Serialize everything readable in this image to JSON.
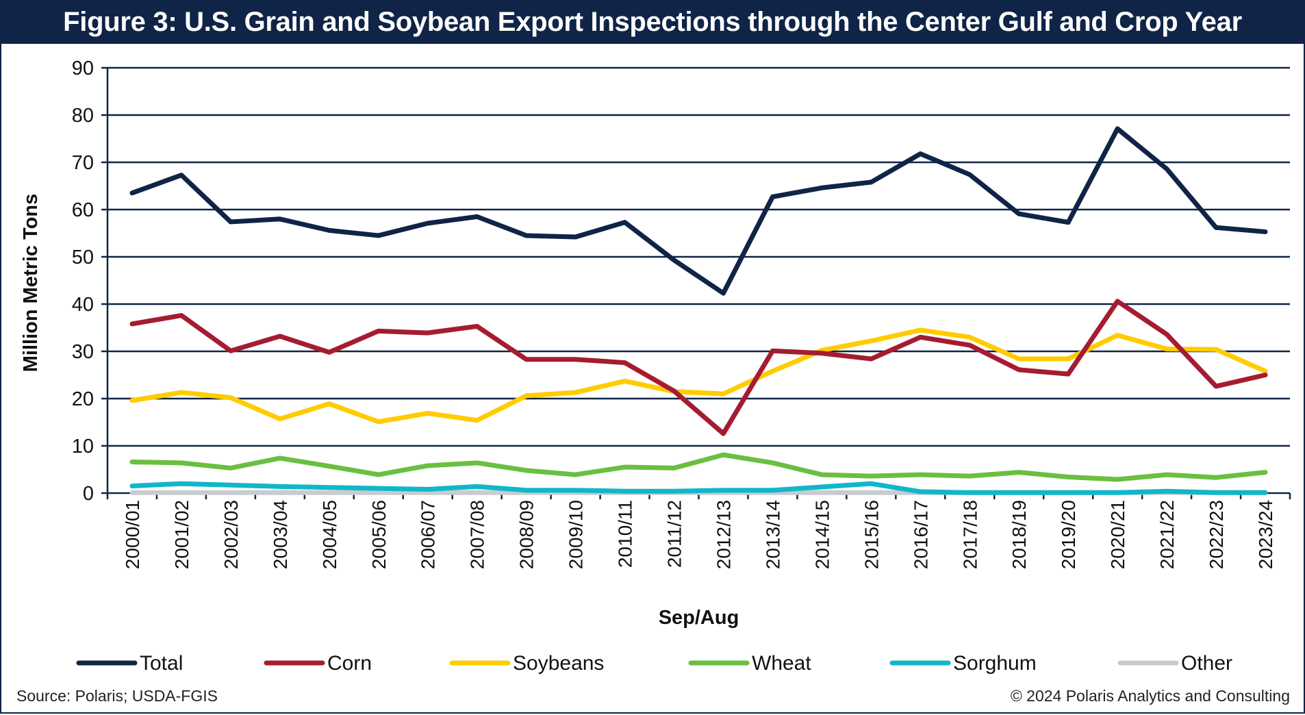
{
  "title": "Figure 3: U.S. Grain and Soybean Export Inspections through the Center Gulf and Crop Year",
  "source": "Source:  Polaris; USDA-FGIS",
  "copyright": "© 2024 Polaris Analytics and Consulting",
  "chart_data": {
    "type": "line",
    "title": "Figure 3: U.S. Grain and Soybean Export Inspections through the Center Gulf and Crop Year",
    "xlabel": "Sep/Aug",
    "ylabel": "Million  Metric  Tons",
    "ylim": [
      0,
      90
    ],
    "yticks": [
      0,
      10,
      20,
      30,
      40,
      50,
      60,
      70,
      80,
      90
    ],
    "grid": true,
    "legend_position": "bottom",
    "categories": [
      "2000/01",
      "2001/02",
      "2002/03",
      "2003/04",
      "2004/05",
      "2005/06",
      "2006/07",
      "2007/08",
      "2008/09",
      "2009/10",
      "2010/11",
      "2011/12",
      "2012/13",
      "2013/14",
      "2014/15",
      "2015/16",
      "2016/17",
      "2017/18",
      "2018/19",
      "2019/20",
      "2020/21",
      "2021/22",
      "2022/23",
      "2023/24"
    ],
    "series": [
      {
        "name": "Total",
        "color": "#0f2447",
        "values": [
          63.5,
          67.3,
          57.4,
          58.0,
          55.6,
          54.5,
          57.1,
          58.5,
          54.5,
          54.2,
          57.3,
          49.3,
          42.3,
          62.7,
          64.6,
          65.8,
          71.8,
          67.4,
          59.1,
          57.3,
          77.1,
          68.6,
          56.2,
          55.3
        ]
      },
      {
        "name": "Corn",
        "color": "#a51c30",
        "values": [
          35.8,
          37.6,
          30.1,
          33.2,
          29.8,
          34.3,
          33.9,
          35.3,
          28.3,
          28.3,
          27.6,
          21.6,
          12.6,
          30.1,
          29.6,
          28.4,
          33.0,
          31.3,
          26.1,
          25.2,
          40.6,
          33.6,
          22.6,
          25.0
        ]
      },
      {
        "name": "Soybeans",
        "color": "#ffcc00",
        "values": [
          19.6,
          21.3,
          20.2,
          15.7,
          18.9,
          15.1,
          16.9,
          15.4,
          20.6,
          21.3,
          23.7,
          21.5,
          21.0,
          25.8,
          30.2,
          32.2,
          34.5,
          33.0,
          28.4,
          28.4,
          33.4,
          30.5,
          30.4,
          25.8
        ]
      },
      {
        "name": "Wheat",
        "color": "#6abf40",
        "values": [
          6.6,
          6.4,
          5.3,
          7.4,
          5.7,
          3.9,
          5.8,
          6.4,
          4.8,
          3.9,
          5.5,
          5.3,
          8.1,
          6.4,
          3.9,
          3.6,
          3.9,
          3.6,
          4.4,
          3.4,
          2.9,
          3.9,
          3.3,
          4.4
        ]
      },
      {
        "name": "Sorghum",
        "color": "#10b7c8",
        "values": [
          1.5,
          2.0,
          1.7,
          1.4,
          1.2,
          1.0,
          0.8,
          1.4,
          0.6,
          0.6,
          0.4,
          0.4,
          0.6,
          0.6,
          1.3,
          2.0,
          0.3,
          0.1,
          0.1,
          0.1,
          0.1,
          0.4,
          0.1,
          0.1
        ]
      },
      {
        "name": "Other",
        "color": "#c8ccd0",
        "values": [
          0.1,
          0.1,
          0.1,
          0.1,
          0.1,
          0.1,
          0.1,
          0.1,
          0.1,
          0.1,
          0.1,
          0.1,
          0.1,
          0.1,
          0.1,
          0.1,
          0.1,
          0.1,
          0.1,
          0.1,
          0.1,
          0.1,
          0.1,
          0.1
        ]
      }
    ]
  }
}
